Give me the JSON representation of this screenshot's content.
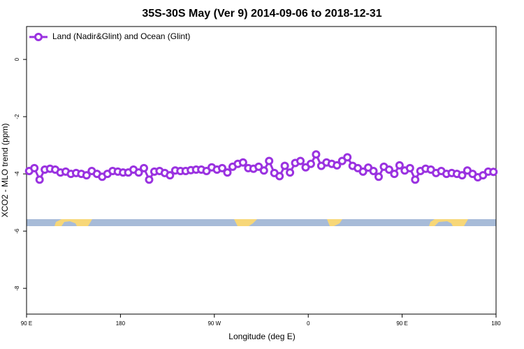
{
  "chart_data": {
    "type": "line",
    "title": "35S-30S May (Ver 9)   2014-09-06 to 2018-12-31",
    "xlabel": "Longitude (deg E)",
    "ylabel": "XCO2 - MLO trend (ppm)",
    "x": [
      92.5,
      97.5,
      102.5,
      107.5,
      112.5,
      117.5,
      122.5,
      127.5,
      132.5,
      137.5,
      142.5,
      147.5,
      152.5,
      157.5,
      162.5,
      167.5,
      172.5,
      177.5,
      182.5,
      187.5,
      192.5,
      197.5,
      202.5,
      207.5,
      212.5,
      217.5,
      222.5,
      227.5,
      232.5,
      237.5,
      242.5,
      247.5,
      252.5,
      257.5,
      262.5,
      267.5,
      272.5,
      277.5,
      282.5,
      287.5,
      292.5,
      297.5,
      302.5,
      307.5,
      312.5,
      317.5,
      322.5,
      327.5,
      332.5,
      337.5,
      342.5,
      347.5,
      352.5,
      357.5,
      362.5,
      367.5,
      372.5,
      377.5,
      382.5,
      387.5,
      392.5,
      397.5,
      402.5,
      407.5,
      412.5,
      417.5,
      422.5,
      427.5,
      432.5,
      437.5,
      442.5,
      447.5,
      452.5,
      457.5,
      462.5,
      467.5,
      472.5,
      477.5,
      482.5,
      487.5,
      492.5,
      497.5,
      502.5,
      507.5,
      512.5,
      517.5,
      522.5,
      527.5,
      532.5,
      537.5
    ],
    "series": [
      {
        "name": "Land (Nadir&Glint) and Ocean (Glint)",
        "color": "#9a32e0",
        "values": [
          -3.9,
          -3.8,
          -4.2,
          -3.85,
          -3.82,
          -3.85,
          -3.95,
          -3.92,
          -4.0,
          -3.97,
          -4.0,
          -4.05,
          -3.9,
          -4.0,
          -4.1,
          -4.0,
          -3.9,
          -3.92,
          -3.95,
          -3.95,
          -3.85,
          -3.95,
          -3.8,
          -4.2,
          -3.92,
          -3.9,
          -3.97,
          -4.05,
          -3.88,
          -3.9,
          -3.9,
          -3.87,
          -3.85,
          -3.85,
          -3.9,
          -3.77,
          -3.85,
          -3.8,
          -3.95,
          -3.75,
          -3.65,
          -3.6,
          -3.8,
          -3.82,
          -3.75,
          -3.88,
          -3.55,
          -3.97,
          -4.08,
          -3.72,
          -3.95,
          -3.62,
          -3.55,
          -3.77,
          -3.65,
          -3.32,
          -3.72,
          -3.6,
          -3.65,
          -3.7,
          -3.55,
          -3.42,
          -3.72,
          -3.8,
          -3.92,
          -3.78,
          -3.9,
          -4.1,
          -3.75,
          -3.85,
          -4.0,
          -3.7,
          -3.88,
          -3.8,
          -4.2,
          -3.9,
          -3.82,
          -3.85,
          -3.97,
          -3.9,
          -4.0,
          -3.97,
          -4.0,
          -4.05,
          -3.88,
          -4.0,
          -4.12,
          -4.05,
          -3.92,
          -3.93
        ]
      }
    ],
    "xlim": [
      90,
      540
    ],
    "xticks": [
      {
        "value": 90,
        "label": "90 E"
      },
      180,
      {
        "value": 270,
        "label": "90 W"
      },
      {
        "value": 360,
        "label": "0"
      },
      {
        "value": 450,
        "label": "90 E"
      },
      {
        "value": 540,
        "label": "180"
      }
    ],
    "ylim": [
      -8.9,
      1.15
    ],
    "yticks": [
      0,
      -2,
      -4,
      -6,
      -8
    ],
    "legend": "top-left"
  }
}
